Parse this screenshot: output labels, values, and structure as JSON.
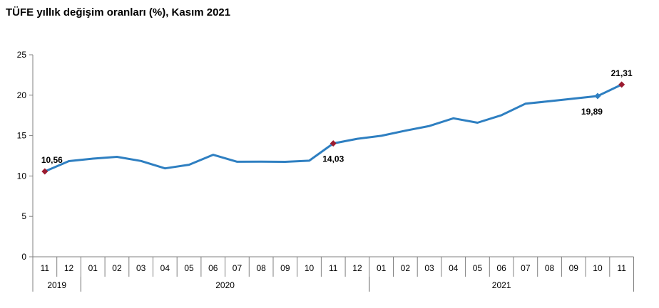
{
  "title": "TÜFE yıllık değişim oranları (%), Kasım 2021",
  "chart_data": {
    "type": "line",
    "title": "TÜFE yıllık değişim oranları (%), Kasım 2021",
    "xlabel": "",
    "ylabel": "",
    "ylim": [
      0,
      25
    ],
    "yticks": [
      "0",
      "5",
      "10",
      "15",
      "20",
      "25"
    ],
    "grid": false,
    "categories": [
      "11",
      "12",
      "01",
      "02",
      "03",
      "04",
      "05",
      "06",
      "07",
      "08",
      "09",
      "10",
      "11",
      "12",
      "01",
      "02",
      "03",
      "04",
      "05",
      "06",
      "07",
      "08",
      "09",
      "10",
      "11"
    ],
    "years": [
      {
        "label": "2019",
        "start": 0,
        "end": 1
      },
      {
        "label": "2020",
        "start": 2,
        "end": 13
      },
      {
        "label": "2021",
        "start": 14,
        "end": 24
      }
    ],
    "series": [
      {
        "color": "#2e7fc1",
        "values": [
          10.56,
          11.84,
          12.15,
          12.37,
          11.86,
          10.94,
          11.39,
          12.62,
          11.76,
          11.77,
          11.75,
          11.89,
          14.03,
          14.6,
          14.97,
          15.61,
          16.19,
          17.14,
          16.59,
          17.53,
          18.95,
          19.25,
          19.58,
          19.89,
          21.31
        ]
      }
    ],
    "annotations": [
      {
        "index": 0,
        "text": "10,56",
        "position": "above"
      },
      {
        "index": 12,
        "text": "14,03",
        "position": "below"
      },
      {
        "index": 23,
        "text": "19,89",
        "position": "below-left"
      },
      {
        "index": 24,
        "text": "21,31",
        "position": "above"
      }
    ],
    "marker_color": "#9b1b30"
  }
}
